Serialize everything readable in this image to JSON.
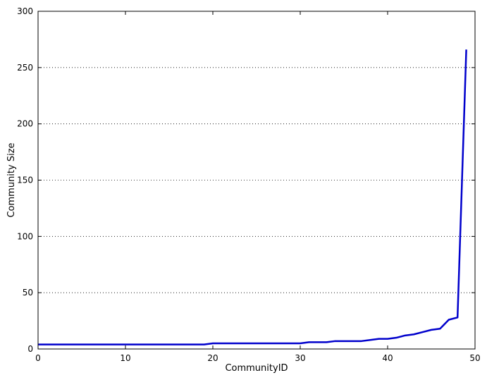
{
  "chart_data": {
    "type": "line",
    "title": "",
    "xlabel": "CommunityID",
    "ylabel": "Community Size",
    "xlim": [
      0,
      50
    ],
    "ylim": [
      0,
      300
    ],
    "xticks": [
      0,
      10,
      20,
      30,
      40,
      50
    ],
    "yticks": [
      0,
      50,
      100,
      150,
      200,
      250,
      300
    ],
    "grid": "horizontal-dotted",
    "legend": "none",
    "series": [
      {
        "color": "#0000cc",
        "x": [
          0,
          1,
          2,
          3,
          4,
          5,
          6,
          7,
          8,
          9,
          10,
          11,
          12,
          13,
          14,
          15,
          16,
          17,
          18,
          19,
          20,
          21,
          22,
          23,
          24,
          25,
          26,
          27,
          28,
          29,
          30,
          31,
          32,
          33,
          34,
          35,
          36,
          37,
          38,
          39,
          40,
          41,
          42,
          43,
          44,
          45,
          46,
          47,
          48,
          49
        ],
        "y": [
          4,
          4,
          4,
          4,
          4,
          4,
          4,
          4,
          4,
          4,
          4,
          4,
          4,
          4,
          4,
          4,
          4,
          4,
          4,
          4,
          5,
          5,
          5,
          5,
          5,
          5,
          5,
          5,
          5,
          5,
          5,
          6,
          6,
          6,
          7,
          7,
          7,
          7,
          8,
          9,
          9,
          10,
          12,
          13,
          15,
          17,
          18,
          26,
          28,
          266
        ]
      }
    ]
  }
}
